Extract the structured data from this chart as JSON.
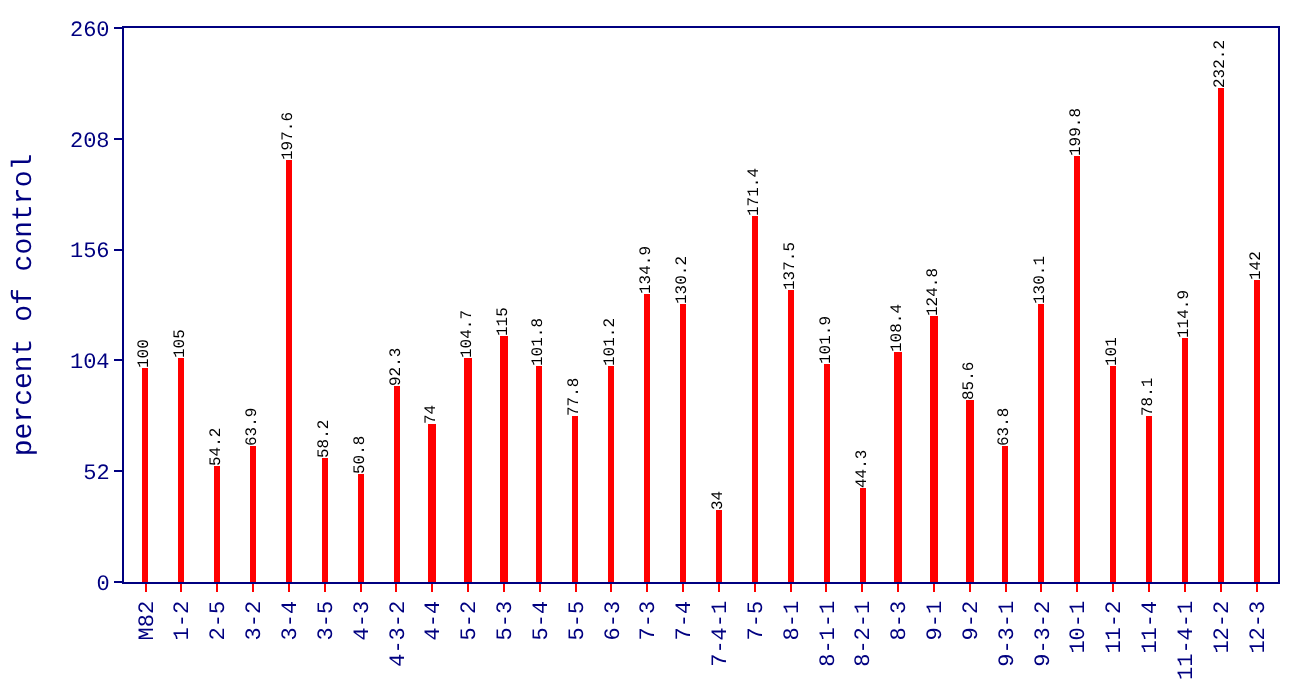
{
  "chart_data": {
    "type": "bar",
    "ylabel": "percent of control",
    "categories": [
      "M82",
      "1-2",
      "2-5",
      "3-2",
      "3-4",
      "3-5",
      "4-3",
      "4-3-2",
      "4-4",
      "5-2",
      "5-3",
      "5-4",
      "5-5",
      "6-3",
      "7-3",
      "7-4",
      "7-4-1",
      "7-5",
      "8-1",
      "8-1-1",
      "8-2-1",
      "8-3",
      "9-1",
      "9-2",
      "9-3-1",
      "9-3-2",
      "10-1",
      "11-2",
      "11-4",
      "11-4-1",
      "12-2",
      "12-3"
    ],
    "values": [
      100,
      105,
      54.2,
      63.9,
      197.6,
      58.2,
      50.8,
      92.3,
      74,
      104.7,
      115,
      101.8,
      77.8,
      101.2,
      134.9,
      130.2,
      34,
      171.4,
      137.5,
      101.9,
      44.3,
      108.4,
      124.8,
      85.6,
      63.8,
      130.1,
      199.8,
      101,
      78.1,
      114.9,
      232.2,
      142
    ],
    "color": "#ff0000",
    "ylim": [
      0,
      260
    ],
    "yticks": [
      0,
      52,
      104,
      156,
      208,
      260
    ],
    "data_labels": true
  }
}
